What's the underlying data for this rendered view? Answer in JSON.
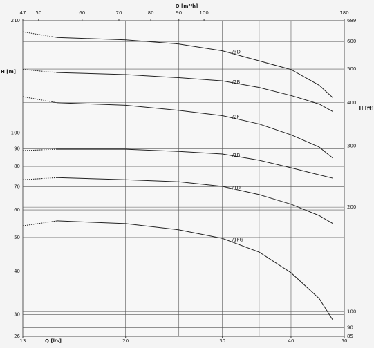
{
  "chart_data": {
    "type": "line",
    "x_label": "Q [l/s]",
    "x2_label": "Q [m³/h]",
    "y_label": "H [m]",
    "y2_label": "H [ft]",
    "log_x": true,
    "log_y": true,
    "grid": true,
    "x": [
      13,
      15,
      20,
      25,
      30,
      35,
      40,
      45,
      47.7
    ],
    "xlim": [
      13,
      50
    ],
    "xticks": [
      13,
      20,
      30,
      40,
      50
    ],
    "x_gridlines": [
      15,
      20,
      25,
      30,
      35,
      40,
      45
    ],
    "x2lim": [
      46.8,
      180
    ],
    "x2ticks": [
      {
        "value": 46.8,
        "label": "47"
      },
      50,
      60,
      70,
      80,
      90,
      100,
      180
    ],
    "ylim": [
      26,
      210
    ],
    "yticks": [
      26,
      30,
      40,
      50,
      60,
      70,
      80,
      90,
      100,
      210
    ],
    "y2lim": [
      85,
      689
    ],
    "y2ticks": [
      85,
      90,
      100,
      200,
      300,
      400,
      500,
      600,
      689
    ],
    "series": [
      {
        "name": "/3D",
        "color": "#222222",
        "values": [
          195,
          188,
          185,
          180,
          172,
          161,
          152,
          137,
          126
        ]
      },
      {
        "name": "/2B",
        "color": "#222222",
        "values": [
          152,
          149,
          147,
          144,
          141,
          135,
          128,
          121,
          115
        ]
      },
      {
        "name": "/2F",
        "color": "#222222",
        "values": [
          127,
          122,
          120,
          116,
          112,
          106,
          98.7,
          91,
          84.5
        ]
      },
      {
        "name": "/1B",
        "color": "#222222",
        "values": [
          88.9,
          89.7,
          89.7,
          88.4,
          86.9,
          83.4,
          79.3,
          75.7,
          74
        ]
      },
      {
        "name": "/1D",
        "color": "#222222",
        "values": [
          73.3,
          74.3,
          73.3,
          72.3,
          70.1,
          66.4,
          62.3,
          57.8,
          54.8
        ]
      },
      {
        "name": "/1FG",
        "color": "#222222",
        "values": [
          54,
          55.8,
          54.8,
          52.6,
          49.7,
          45.4,
          39.6,
          33.4,
          28.9
        ]
      }
    ]
  }
}
